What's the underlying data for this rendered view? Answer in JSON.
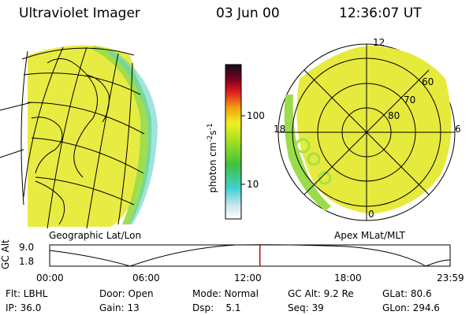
{
  "header": {
    "title": "Ultraviolet Imager",
    "date": "03 Jun 00",
    "time": "12:36:07 UT"
  },
  "panels": {
    "left_label": "Geographic Lat/Lon",
    "right_label": "Apex MLat/MLT"
  },
  "colorbar": {
    "unit_label": "photon cm",
    "unit_sup1": "-2",
    "unit_mid": "s",
    "unit_sup2": "-1",
    "ticks": [
      "100",
      "10"
    ]
  },
  "polar_plot": {
    "mlt_labels": [
      "12",
      "18",
      "6",
      "0"
    ],
    "lat_labels": [
      "60",
      "70",
      "80"
    ]
  },
  "altitude_plot": {
    "ylabel": "GC Alt",
    "yticks": [
      "9.0",
      "1.8"
    ],
    "xticks": [
      "00:00",
      "06:00",
      "12:00",
      "18:00",
      "23:59"
    ],
    "marker_time_hours": 12.6
  },
  "info": {
    "flt": "Flt: LBHL",
    "door": "Door: Open",
    "mode": "Mode: Normal",
    "gc_alt": "GC Alt: 9.2 Re",
    "glat": "GLat: 80.6",
    "ip": "IP: 36.0",
    "gain": "Gain: 13",
    "dsp": "Dsp:    5.1",
    "seq": "Seq: 39",
    "glon": "GLon: 294.6"
  },
  "colors": {
    "aurora_yellow": "#e6ea3c",
    "aurora_green": "#a6e048",
    "aurora_cyan": "#5fd2c8",
    "marker_red": "#cc0000"
  }
}
